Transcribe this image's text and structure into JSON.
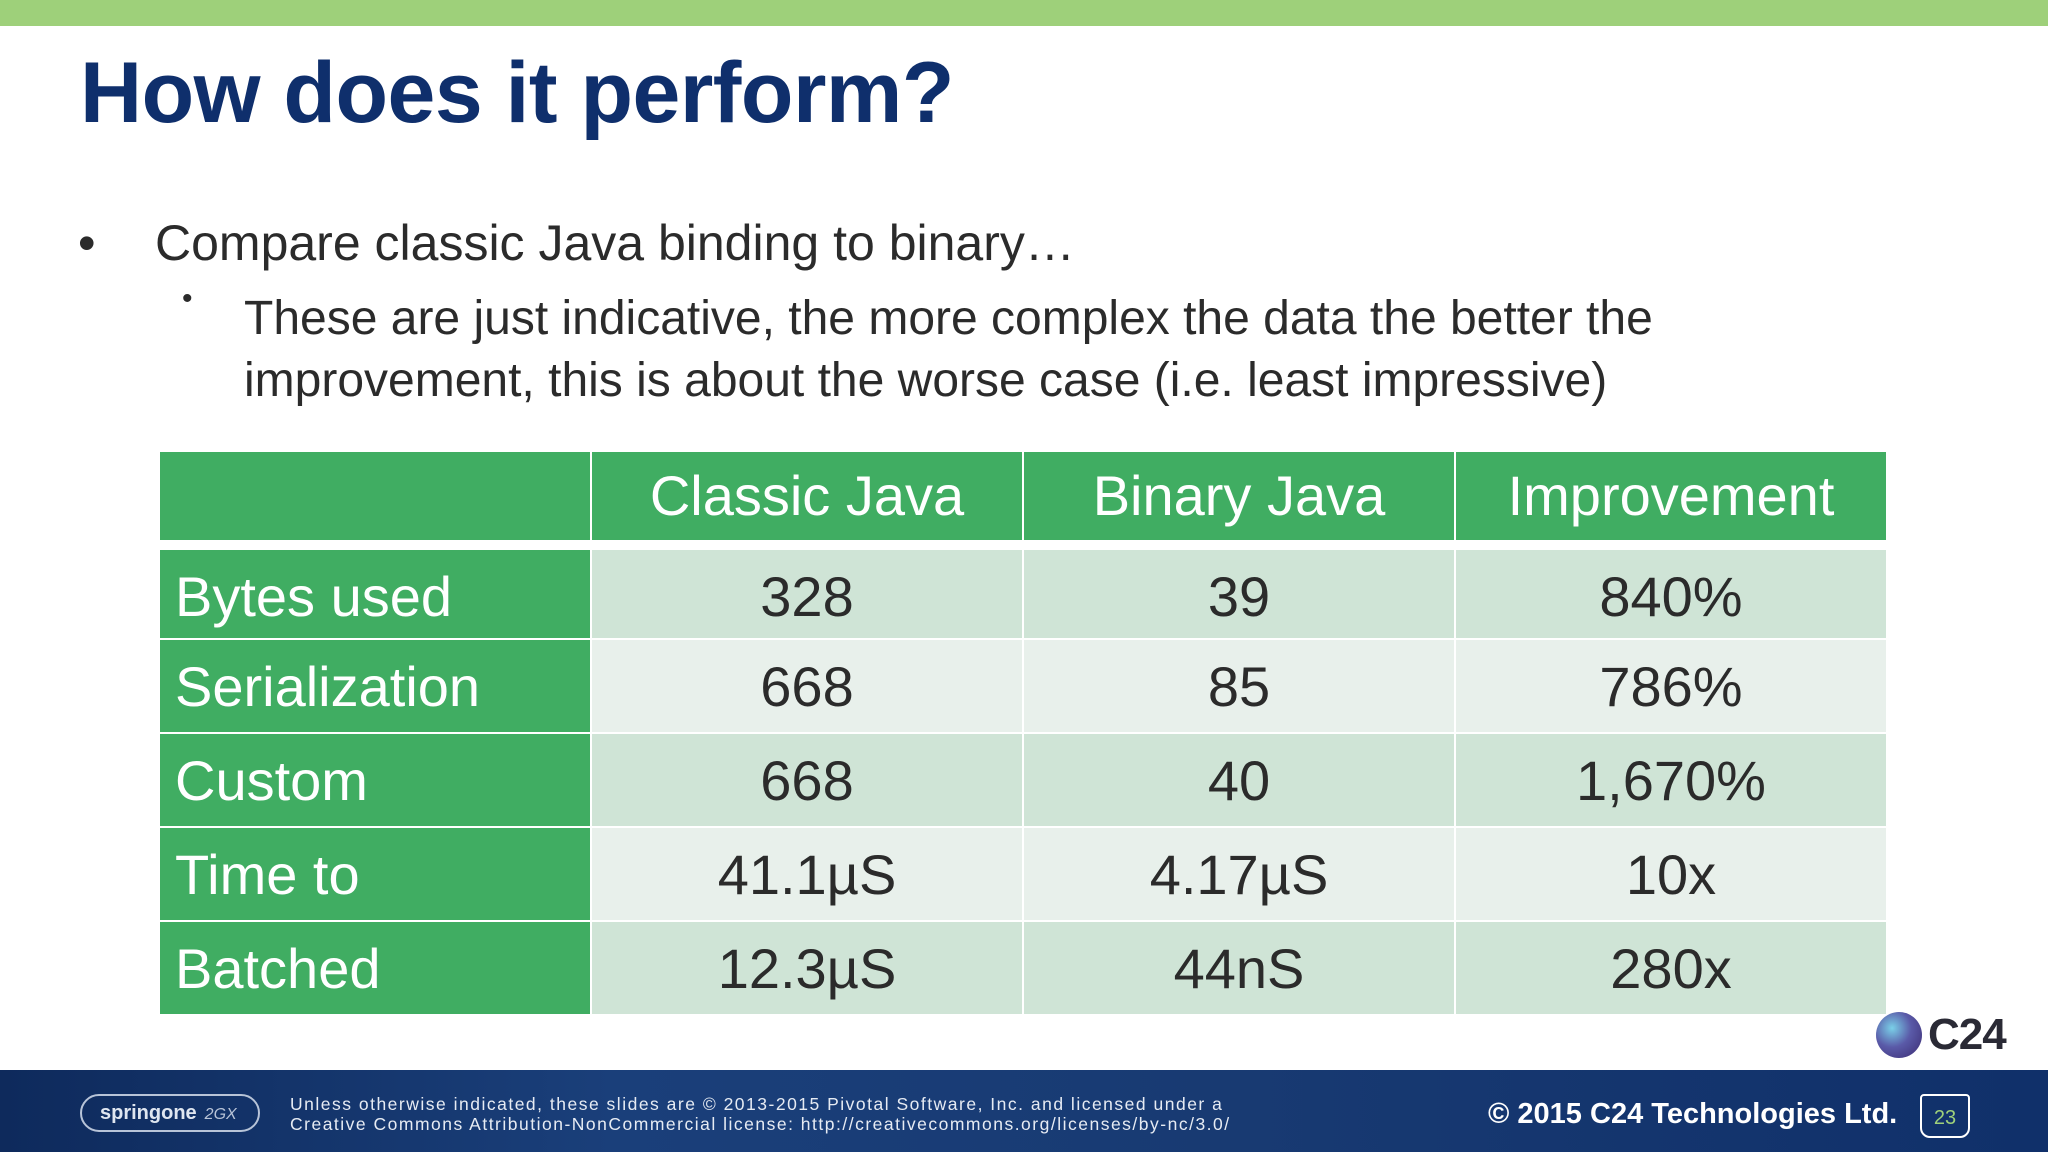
{
  "slide": {
    "title": "How does it perform?",
    "bullets": [
      {
        "marker": "•",
        "text": "Compare classic Java binding to binary…"
      },
      {
        "marker": "•",
        "text": "These are just indicative, the more complex the data the better the improvement, this is about the worse case (i.e. least impressive)"
      }
    ]
  },
  "table": {
    "headers": [
      "",
      "Classic Java",
      "Binary Java",
      "Improvement"
    ],
    "rows": [
      {
        "label": "Bytes used",
        "classic": "328",
        "binary": "39",
        "improvement": "840%"
      },
      {
        "label": "Serialization",
        "classic": "668",
        "binary": "85",
        "improvement": "786%"
      },
      {
        "label": "Custom",
        "classic": "668",
        "binary": "40",
        "improvement": "1,670%"
      },
      {
        "label": "Time to",
        "classic": "41.1µS",
        "binary": "4.17µS",
        "improvement": "10x"
      },
      {
        "label": "Batched",
        "classic": "12.3µS",
        "binary": "44nS",
        "improvement": "280x"
      }
    ]
  },
  "branding": {
    "c24_logo_text": "C24",
    "springone_logo_text": "springone",
    "springone_logo_sub": "2GX",
    "license_line1": "Unless otherwise indicated, these slides are © 2013-2015 Pivotal Software, Inc. and licensed under a",
    "license_line2": "Creative Commons Attribution-NonCommercial license: http://creativecommons.org/licenses/by-nc/3.0/",
    "copyright": "© 2015 C24 Technologies Ltd.",
    "page_number": "23"
  },
  "colors": {
    "title": "#0f2f6c",
    "accent_bar": "#9ed07a",
    "table_header": "#40ad62",
    "row_shade_a": "#cfe4d6",
    "row_shade_b": "#e8f0eb",
    "footer": "#1a3f7a"
  }
}
